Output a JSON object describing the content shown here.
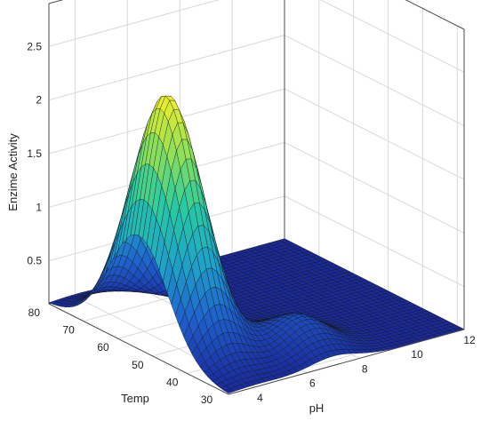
{
  "chart_data": {
    "type": "surface",
    "xlabel": "pH",
    "ylabel": "Temp",
    "zlabel": "Enzime Activity",
    "xlim": [
      3,
      12
    ],
    "ylim": [
      28,
      80
    ],
    "zlim": [
      0.1,
      2.9
    ],
    "xticks": [
      4,
      6,
      8,
      10,
      12
    ],
    "yticks": [
      30,
      40,
      50,
      60,
      70,
      80
    ],
    "zticks": [
      0.5,
      1,
      1.5,
      2,
      2.5
    ],
    "grid": true,
    "baseline": 0.1,
    "peak": {
      "pH": 4.1,
      "Temp": 54,
      "value": 2.4
    },
    "secondary_peak": {
      "pH": 7.0,
      "Temp": 38,
      "value": 0.4
    },
    "colormap": [
      "#1a2a9c",
      "#1f5fcc",
      "#1fa3c8",
      "#29c9a3",
      "#8fe05a",
      "#f3ee2a"
    ],
    "mesh_color": "#111111"
  }
}
